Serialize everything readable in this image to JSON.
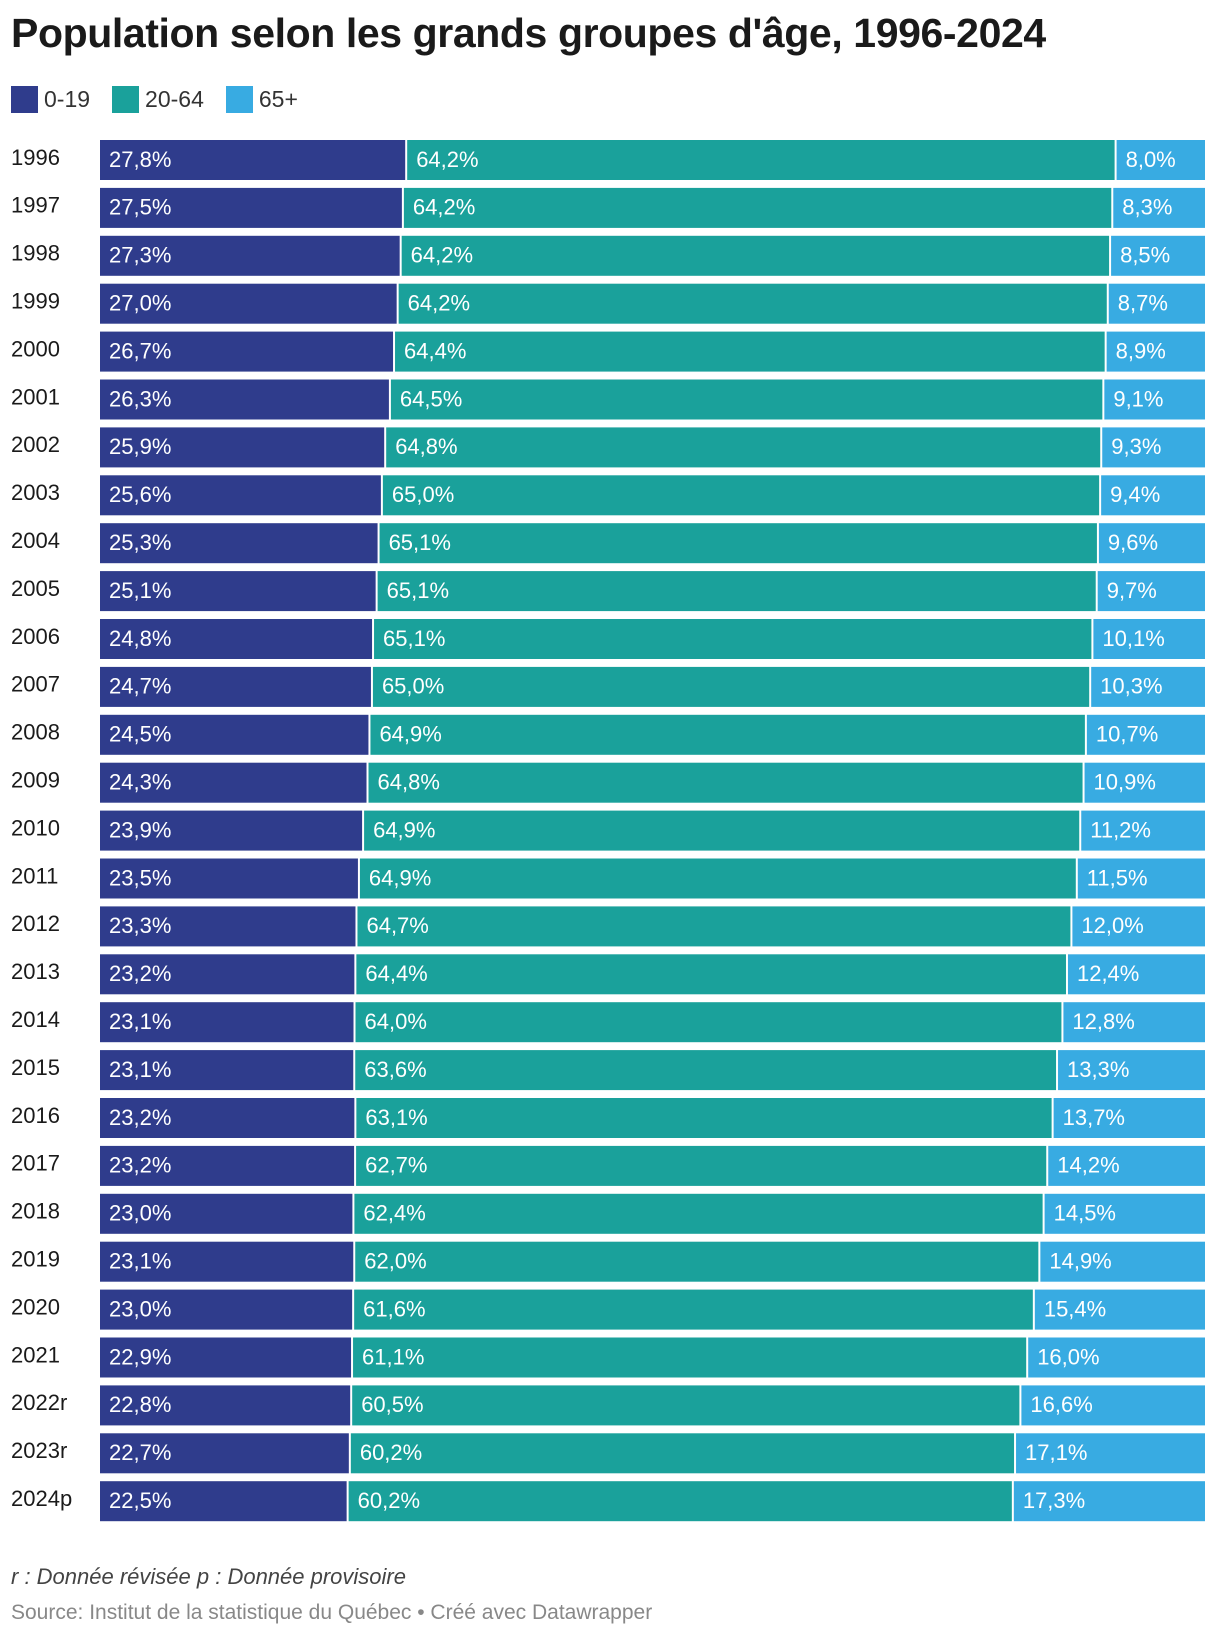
{
  "title": "Population selon les grands groupes d'âge, 1996-2024",
  "note": "r : Donnée révisée p : Donnée provisoire",
  "source": "Source: Institut de la statistique du Québec • Créé avec Datawrapper",
  "colors": {
    "0-19": "#2f3c8c",
    "20-64": "#1aa19b",
    "65+": "#38abe2"
  },
  "chart_data": {
    "type": "bar",
    "orientation": "horizontal",
    "stacked": true,
    "title": "Population selon les grands groupes d'âge, 1996-2024",
    "legend_position": "top-left",
    "grid": false,
    "categories": [
      "1996",
      "1997",
      "1998",
      "1999",
      "2000",
      "2001",
      "2002",
      "2003",
      "2004",
      "2005",
      "2006",
      "2007",
      "2008",
      "2009",
      "2010",
      "2011",
      "2012",
      "2013",
      "2014",
      "2015",
      "2016",
      "2017",
      "2018",
      "2019",
      "2020",
      "2021",
      "2022r",
      "2023r",
      "2024p"
    ],
    "series": [
      {
        "name": "0-19",
        "color": "#2f3c8c",
        "values": [
          27.8,
          27.5,
          27.3,
          27.0,
          26.7,
          26.3,
          25.9,
          25.6,
          25.3,
          25.1,
          24.8,
          24.7,
          24.5,
          24.3,
          23.9,
          23.5,
          23.3,
          23.2,
          23.1,
          23.1,
          23.2,
          23.2,
          23.0,
          23.1,
          23.0,
          22.9,
          22.8,
          22.7,
          22.5
        ],
        "labels": [
          "27,8%",
          "27,5%",
          "27,3%",
          "27,0%",
          "26,7%",
          "26,3%",
          "25,9%",
          "25,6%",
          "25,3%",
          "25,1%",
          "24,8%",
          "24,7%",
          "24,5%",
          "24,3%",
          "23,9%",
          "23,5%",
          "23,3%",
          "23,2%",
          "23,1%",
          "23,1%",
          "23,2%",
          "23,2%",
          "23,0%",
          "23,1%",
          "23,0%",
          "22,9%",
          "22,8%",
          "22,7%",
          "22,5%"
        ]
      },
      {
        "name": "20-64",
        "color": "#1aa19b",
        "values": [
          64.2,
          64.2,
          64.2,
          64.2,
          64.4,
          64.5,
          64.8,
          65.0,
          65.1,
          65.1,
          65.1,
          65.0,
          64.9,
          64.8,
          64.9,
          64.9,
          64.7,
          64.4,
          64.0,
          63.6,
          63.1,
          62.7,
          62.4,
          62.0,
          61.6,
          61.1,
          60.5,
          60.2,
          60.2
        ],
        "labels": [
          "64,2%",
          "64,2%",
          "64,2%",
          "64,2%",
          "64,4%",
          "64,5%",
          "64,8%",
          "65,0%",
          "65,1%",
          "65,1%",
          "65,1%",
          "65,0%",
          "64,9%",
          "64,8%",
          "64,9%",
          "64,9%",
          "64,7%",
          "64,4%",
          "64,0%",
          "63,6%",
          "63,1%",
          "62,7%",
          "62,4%",
          "62,0%",
          "61,6%",
          "61,1%",
          "60,5%",
          "60,2%",
          "60,2%"
        ]
      },
      {
        "name": "65+",
        "color": "#38abe2",
        "values": [
          8.0,
          8.3,
          8.5,
          8.7,
          8.9,
          9.1,
          9.3,
          9.4,
          9.6,
          9.7,
          10.1,
          10.3,
          10.7,
          10.9,
          11.2,
          11.5,
          12.0,
          12.4,
          12.8,
          13.3,
          13.7,
          14.2,
          14.5,
          14.9,
          15.4,
          16.0,
          16.6,
          17.1,
          17.3
        ],
        "labels": [
          "8,0%",
          "8,3%",
          "8,5%",
          "8,7%",
          "8,9%",
          "9,1%",
          "9,3%",
          "9,4%",
          "9,6%",
          "9,7%",
          "10,1%",
          "10,3%",
          "10,7%",
          "10,9%",
          "11,2%",
          "11,5%",
          "12,0%",
          "12,4%",
          "12,8%",
          "13,3%",
          "13,7%",
          "14,2%",
          "14,5%",
          "14,9%",
          "15,4%",
          "16,0%",
          "16,6%",
          "17,1%",
          "17,3%"
        ]
      }
    ]
  }
}
